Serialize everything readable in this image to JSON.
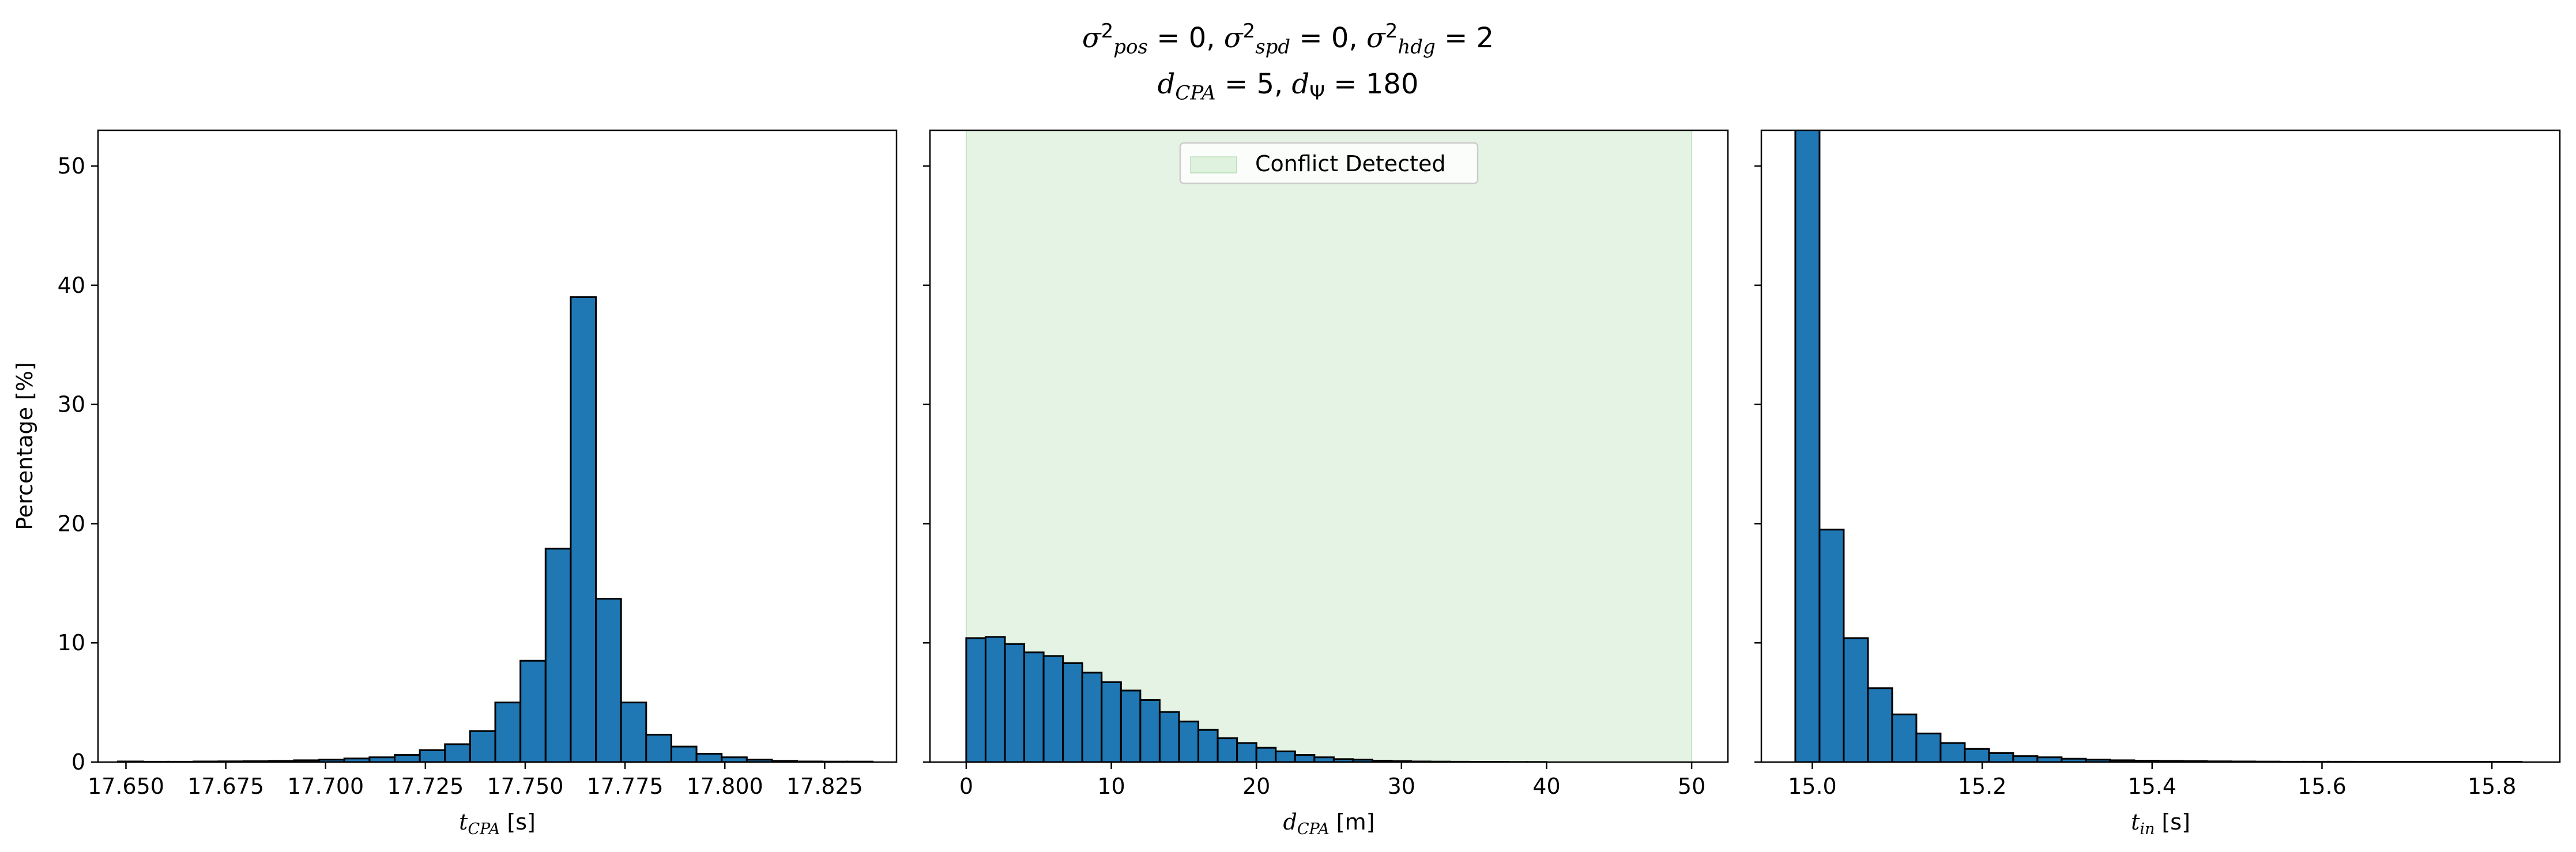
{
  "figure": {
    "title_line1": "σ²pos = 0, σ²spd = 0, σ²hdg = 2",
    "title_line2": "dCPA = 5, dΨ = 180"
  },
  "chart_data": [
    {
      "type": "bar",
      "title": "",
      "xlabel": "tCPA [s]",
      "ylabel": "Percentage [%]",
      "xlim": [
        17.643,
        17.843
      ],
      "ylim": [
        0,
        53
      ],
      "xticks": [
        "17.650",
        "17.675",
        "17.700",
        "17.725",
        "17.750",
        "17.775",
        "17.800",
        "17.825"
      ],
      "yticks": [
        "0",
        "10",
        "20",
        "30",
        "40",
        "50"
      ],
      "bin_edges": [
        17.648,
        17.6543,
        17.6606,
        17.6669,
        17.6732,
        17.6795,
        17.6858,
        17.6921,
        17.6984,
        17.7047,
        17.711,
        17.7173,
        17.7236,
        17.7299,
        17.7362,
        17.7425,
        17.7488,
        17.7551,
        17.7614,
        17.7677,
        17.774,
        17.7803,
        17.7866,
        17.7929,
        17.7992,
        17.8055,
        17.8118,
        17.8181,
        17.8244,
        17.8307,
        17.837
      ],
      "values": [
        0.05,
        0.03,
        0.03,
        0.05,
        0.06,
        0.07,
        0.1,
        0.15,
        0.2,
        0.3,
        0.4,
        0.6,
        1.0,
        1.5,
        2.6,
        5.0,
        8.5,
        17.9,
        39.0,
        13.7,
        5.0,
        2.3,
        1.3,
        0.7,
        0.4,
        0.2,
        0.1,
        0.05,
        0.04,
        0.04
      ],
      "bar_color": "#1f77b4",
      "edge_color": "#000000"
    },
    {
      "type": "bar",
      "title": "",
      "xlabel": "dCPA [m]",
      "ylabel": "",
      "xlim": [
        -2.5,
        52.5
      ],
      "ylim": [
        0,
        53
      ],
      "xticks": [
        "0",
        "10",
        "20",
        "30",
        "40",
        "50"
      ],
      "yticks": [
        "0",
        "10",
        "20",
        "30",
        "40",
        "50"
      ],
      "shaded_region": {
        "x0": 0,
        "x1": 50,
        "label": "Conflict Detected",
        "color": "#2ca02c"
      },
      "legend": {
        "position": "upper center",
        "entries": [
          "Conflict Detected"
        ]
      },
      "bin_edges": [
        0,
        1.333,
        2.667,
        4.0,
        5.333,
        6.667,
        8.0,
        9.333,
        10.667,
        12.0,
        13.333,
        14.667,
        16.0,
        17.333,
        18.667,
        20.0,
        21.333,
        22.667,
        24.0,
        25.333,
        26.667,
        28.0,
        29.333,
        30.667,
        32.0,
        33.333,
        34.667,
        36.0,
        37.333,
        38.667,
        40.0
      ],
      "values": [
        10.4,
        10.5,
        9.9,
        9.2,
        8.9,
        8.3,
        7.5,
        6.7,
        6.0,
        5.2,
        4.2,
        3.4,
        2.7,
        2.0,
        1.6,
        1.2,
        0.9,
        0.6,
        0.4,
        0.25,
        0.2,
        0.12,
        0.08,
        0.05,
        0.04,
        0.03,
        0.02,
        0.02,
        0.01,
        0.01
      ],
      "bar_color": "#1f77b4",
      "edge_color": "#000000"
    },
    {
      "type": "bar",
      "title": "",
      "xlabel": "tin [s]",
      "ylabel": "",
      "xlim": [
        14.94,
        15.88
      ],
      "ylim": [
        0,
        53
      ],
      "xticks": [
        "15.0",
        "15.2",
        "15.4",
        "15.6",
        "15.8"
      ],
      "yticks": [
        "0",
        "10",
        "20",
        "30",
        "40",
        "50"
      ],
      "bin_edges": [
        14.98,
        15.0085,
        15.037,
        15.0655,
        15.094,
        15.1225,
        15.151,
        15.1795,
        15.208,
        15.2365,
        15.265,
        15.2935,
        15.322,
        15.3505,
        15.379,
        15.4075,
        15.436,
        15.4645,
        15.493,
        15.5215,
        15.55,
        15.5785,
        15.607,
        15.6355,
        15.664,
        15.6925,
        15.721,
        15.7495,
        15.778,
        15.8065,
        15.835
      ],
      "values": [
        60.0,
        19.5,
        10.4,
        6.2,
        4.0,
        2.4,
        1.6,
        1.1,
        0.75,
        0.5,
        0.4,
        0.28,
        0.2,
        0.15,
        0.12,
        0.1,
        0.08,
        0.06,
        0.05,
        0.04,
        0.03,
        0.03,
        0.03,
        0.02,
        0.02,
        0.02,
        0.02,
        0.02,
        0.02,
        0.02
      ],
      "bar_color": "#1f77b4",
      "edge_color": "#000000"
    }
  ]
}
